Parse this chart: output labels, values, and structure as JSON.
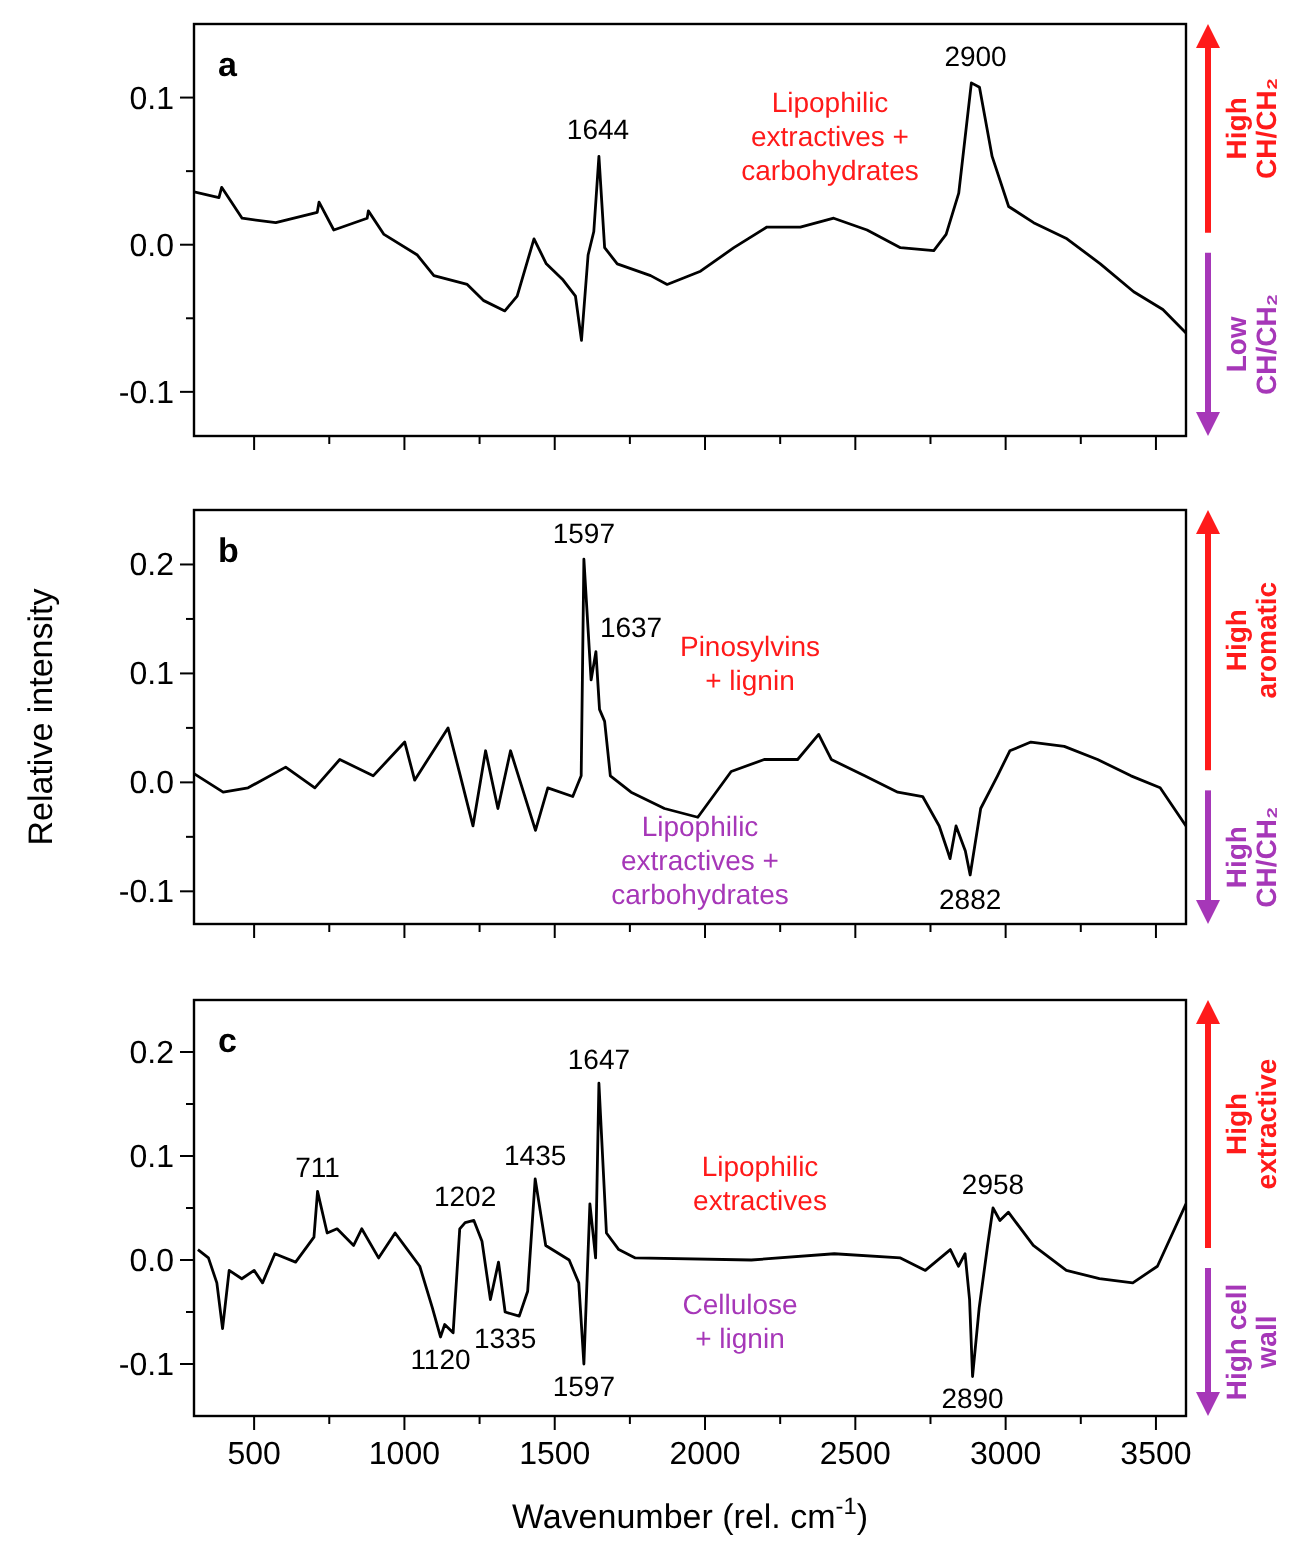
{
  "chart_data": [
    {
      "type": "line",
      "title": "a",
      "xlim": [
        300,
        3600
      ],
      "ylim": [
        -0.13,
        0.15
      ],
      "xticks": [
        500,
        {
          "value": 750,
          "label": null
        },
        1000,
        {
          "value": 1250,
          "label": null
        },
        1500,
        {
          "value": 1750,
          "label": null
        },
        2000,
        {
          "value": 2250,
          "label": null
        },
        2500,
        {
          "value": 2750,
          "label": null
        },
        3000,
        {
          "value": 3250,
          "label": null
        },
        3500
      ],
      "yticks": [
        {
          "value": -0.1,
          "label": "-0.1"
        },
        {
          "value": -0.05,
          "label": null
        },
        {
          "value": 0,
          "label": "0.0"
        },
        {
          "value": 0.05,
          "label": null
        },
        {
          "value": 0.1,
          "label": "0.1"
        }
      ],
      "tick_labels": "y",
      "series": [
        {
          "color": "#000000",
          "x": [
            300,
            383,
            392,
            460,
            572,
            710,
            716,
            765,
            876,
            880,
            932,
            1043,
            1098,
            1209,
            1264,
            1334,
            1375,
            1431,
            1472,
            1528,
            1569,
            1589,
            1611,
            1630,
            1647,
            1666,
            1708,
            1819,
            1874,
            1985,
            2096,
            2206,
            2317,
            2428,
            2539,
            2650,
            2761,
            2802,
            2844,
            2886,
            2913,
            2955,
            3010,
            3093,
            3204,
            3315,
            3426,
            3523,
            3600
          ],
          "values": [
            0.036,
            0.032,
            0.039,
            0.018,
            0.015,
            0.022,
            0.029,
            0.01,
            0.018,
            0.023,
            0.007,
            -0.007,
            -0.021,
            -0.027,
            -0.038,
            -0.045,
            -0.035,
            0.004,
            -0.013,
            -0.024,
            -0.035,
            -0.065,
            -0.007,
            0.009,
            0.06,
            -0.002,
            -0.013,
            -0.021,
            -0.027,
            -0.018,
            -0.002,
            0.012,
            0.012,
            0.018,
            0.01,
            -0.002,
            -0.004,
            0.007,
            0.035,
            0.11,
            0.107,
            0.06,
            0.026,
            0.015,
            0.004,
            -0.013,
            -0.032,
            -0.044,
            -0.06
          ]
        }
      ],
      "annotations": [
        {
          "text": "1644",
          "x": 1644,
          "y": 0.062
        },
        {
          "text": "2900",
          "x": 2900,
          "y": 0.112
        },
        "Lipophilic\nextractives +\ncarbohydrates",
        "High\nCH/CH₂",
        "Low\nCH/CH₂"
      ]
    },
    {
      "type": "line",
      "title": "b",
      "ylabel": "Relative intensity",
      "xlim": [
        300,
        3600
      ],
      "ylim": [
        -0.13,
        0.25
      ],
      "xticks": [
        500,
        {
          "value": 750,
          "label": null
        },
        1000,
        {
          "value": 1250,
          "label": null
        },
        1500,
        {
          "value": 1750,
          "label": null
        },
        2000,
        {
          "value": 2250,
          "label": null
        },
        2500,
        {
          "value": 2750,
          "label": null
        },
        3000,
        {
          "value": 3250,
          "label": null
        },
        3500
      ],
      "yticks": [
        {
          "value": -0.1,
          "label": "-0.1"
        },
        {
          "value": -0.05,
          "label": null
        },
        {
          "value": 0,
          "label": "0.0"
        },
        {
          "value": 0.05,
          "label": null
        },
        {
          "value": 0.1,
          "label": "0.1"
        },
        {
          "value": 0.15,
          "label": null
        },
        {
          "value": 0.2,
          "label": "0.2"
        }
      ],
      "tick_labels": "y",
      "series": [
        {
          "color": "#000000",
          "x": [
            300,
            397,
            480,
            605,
            702,
            785,
            896,
            1001,
            1034,
            1145,
            1186,
            1228,
            1270,
            1311,
            1353,
            1436,
            1477,
            1560,
            1588,
            1597,
            1621,
            1637,
            1649,
            1666,
            1685,
            1754,
            1865,
            1976,
            2087,
            2197,
            2308,
            2378,
            2420,
            2531,
            2641,
            2724,
            2779,
            2807,
            2815,
            2835,
            2866,
            2882,
            2917,
            2973,
            3014,
            3084,
            3195,
            3306,
            3417,
            3514,
            3600
          ],
          "values": [
            0.008,
            -0.009,
            -0.005,
            0.014,
            -0.005,
            0.021,
            0.006,
            0.037,
            0.002,
            0.05,
            0.006,
            -0.04,
            0.029,
            -0.024,
            0.029,
            -0.044,
            -0.005,
            -0.013,
            0.006,
            0.205,
            0.094,
            0.12,
            0.067,
            0.056,
            0.006,
            -0.009,
            -0.024,
            -0.032,
            0.01,
            0.021,
            0.021,
            0.044,
            0.021,
            0.006,
            -0.009,
            -0.013,
            -0.04,
            -0.063,
            -0.07,
            -0.04,
            -0.063,
            -0.085,
            -0.024,
            0.006,
            0.029,
            0.037,
            0.033,
            0.021,
            0.006,
            -0.005,
            -0.04
          ]
        }
      ],
      "annotations": [
        {
          "text": "1597",
          "x": 1597,
          "y": 0.207
        },
        {
          "text": "1637",
          "x": 1637,
          "y": 0.122
        },
        {
          "text": "2882",
          "x": 2882,
          "y": -0.087
        },
        "Pinosylvins\n+ lignin",
        "Lipophilic\nextractives +\ncarbohydrates",
        "High\naromatic",
        "High\nCH/CH₂"
      ]
    },
    {
      "type": "line",
      "title": "c",
      "xlabel": "Wavenumber (rel. cm$^{-1}$)",
      "xlim": [
        300,
        3600
      ],
      "ylim": [
        -0.15,
        0.25
      ],
      "xticks": [
        500,
        {
          "value": 750,
          "label": null
        },
        1000,
        {
          "value": 1250,
          "label": null
        },
        1500,
        {
          "value": 1750,
          "label": null
        },
        2000,
        {
          "value": 2250,
          "label": null
        },
        2500,
        {
          "value": 2750,
          "label": null
        },
        3000,
        {
          "value": 3250,
          "label": null
        },
        3500
      ],
      "yticks": [
        {
          "value": -0.1,
          "label": "-0.1"
        },
        {
          "value": -0.05,
          "label": null
        },
        {
          "value": 0,
          "label": "0.0"
        },
        {
          "value": 0.05,
          "label": null
        },
        {
          "value": 0.1,
          "label": "0.1"
        },
        {
          "value": 0.15,
          "label": null
        },
        {
          "value": 0.2,
          "label": "0.2"
        }
      ],
      "series": [
        {
          "color": "#000000",
          "x": [
            313,
            348,
            376,
            395,
            417,
            459,
            500,
            528,
            569,
            638,
            679,
            699,
            711,
            743,
            776,
            831,
            858,
            914,
            969,
            1010,
            1051,
            1093,
            1120,
            1134,
            1162,
            1184,
            1202,
            1231,
            1258,
            1286,
            1313,
            1335,
            1382,
            1410,
            1435,
            1470,
            1548,
            1580,
            1597,
            1617,
            1636,
            1647,
            1672,
            1713,
            1768,
            2154,
            2430,
            2650,
            2733,
            2816,
            2843,
            2865,
            2880,
            2890,
            2912,
            2940,
            2958,
            2981,
            3009,
            3092,
            3202,
            3312,
            3423,
            3505,
            3600
          ],
          "values": [
            0.01,
            0.002,
            -0.022,
            -0.066,
            -0.01,
            -0.018,
            -0.01,
            -0.022,
            0.006,
            -0.002,
            0.014,
            0.022,
            0.066,
            0.026,
            0.03,
            0.014,
            0.03,
            0.002,
            0.026,
            0.01,
            -0.006,
            -0.046,
            -0.074,
            -0.062,
            -0.07,
            0.03,
            0.036,
            0.038,
            0.018,
            -0.038,
            -0.002,
            -0.05,
            -0.054,
            -0.03,
            0.078,
            0.014,
            0.0,
            -0.022,
            -0.1,
            0.054,
            0.002,
            0.17,
            0.026,
            0.01,
            0.002,
            0.0,
            0.006,
            0.002,
            -0.01,
            0.01,
            -0.006,
            0.006,
            -0.038,
            -0.112,
            -0.046,
            0.014,
            0.05,
            0.038,
            0.046,
            0.014,
            -0.01,
            -0.018,
            -0.022,
            -0.006,
            0.054
          ]
        }
      ],
      "annotations": [
        {
          "text": "711",
          "x": 711,
          "y": 0.066
        },
        {
          "text": "1120",
          "x": 1120,
          "y": -0.074
        },
        {
          "text": "1202",
          "x": 1202,
          "y": 0.038
        },
        {
          "text": "1335",
          "x": 1335,
          "y": -0.054
        },
        {
          "text": "1435",
          "x": 1435,
          "y": 0.078
        },
        {
          "text": "1597",
          "x": 1597,
          "y": -0.1
        },
        {
          "text": "1647",
          "x": 1647,
          "y": 0.17
        },
        {
          "text": "2890",
          "x": 2890,
          "y": -0.112
        },
        {
          "text": "2958",
          "x": 2958,
          "y": 0.05
        },
        "Lipophilic\nextractives",
        "Cellulose\n+ lignin",
        "High\nextractive",
        "High cell\nwall"
      ]
    }
  ]
}
